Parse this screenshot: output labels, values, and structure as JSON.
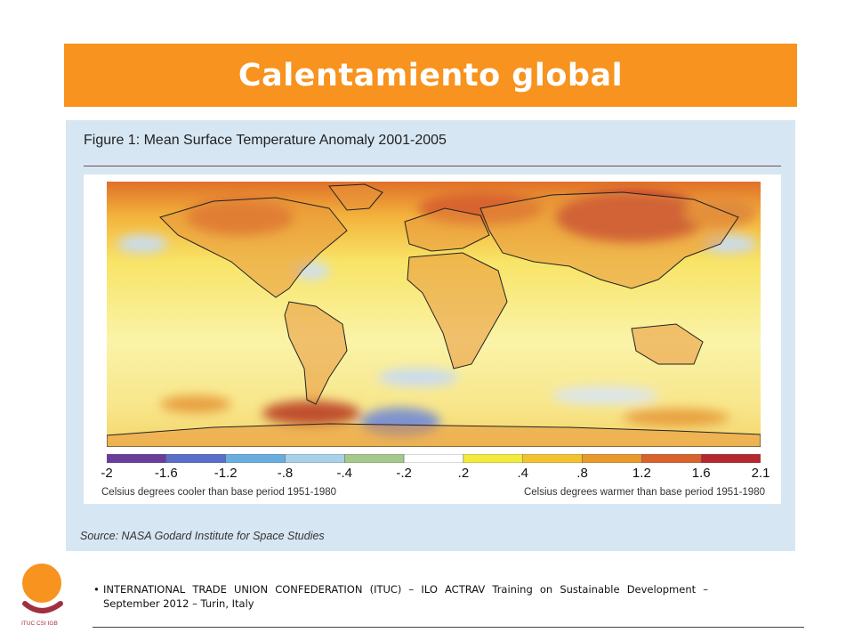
{
  "slide": {
    "title": "Calentamiento global"
  },
  "figure": {
    "title": "Figure 1: Mean Surface Temperature Anomaly 2001-2005",
    "colorbar": {
      "ticks": [
        "-2",
        "-1.6",
        "-1.2",
        "-.8",
        "-.4",
        "-.2",
        ".2",
        ".4",
        ".8",
        "1.2",
        "1.6",
        "2.1"
      ],
      "colors": [
        "#6a3d9a",
        "#5a6fc8",
        "#6aaee0",
        "#a8d0e6",
        "#a3c98c",
        "#ffffff",
        "#f2ea3c",
        "#f2c231",
        "#e89a2c",
        "#d8632e",
        "#b52830",
        "#3a0d12"
      ]
    },
    "note_cooler": "Celsius degrees cooler than base period 1951-1980",
    "note_warmer": "Celsius degrees warmer than base period 1951-1980",
    "source": "Source: NASA Godard Institute for Space Studies"
  },
  "logo": {
    "text": "ITUC CSI IGB",
    "accent": "#f7931e",
    "secondary": "#a03040"
  },
  "footer": {
    "bullet": "•",
    "text": "INTERNATIONAL TRADE UNION CONFEDERATION (ITUC) – ILO ACTRAV Training on Sustainable Development – September 2012 – Turin, Italy"
  }
}
